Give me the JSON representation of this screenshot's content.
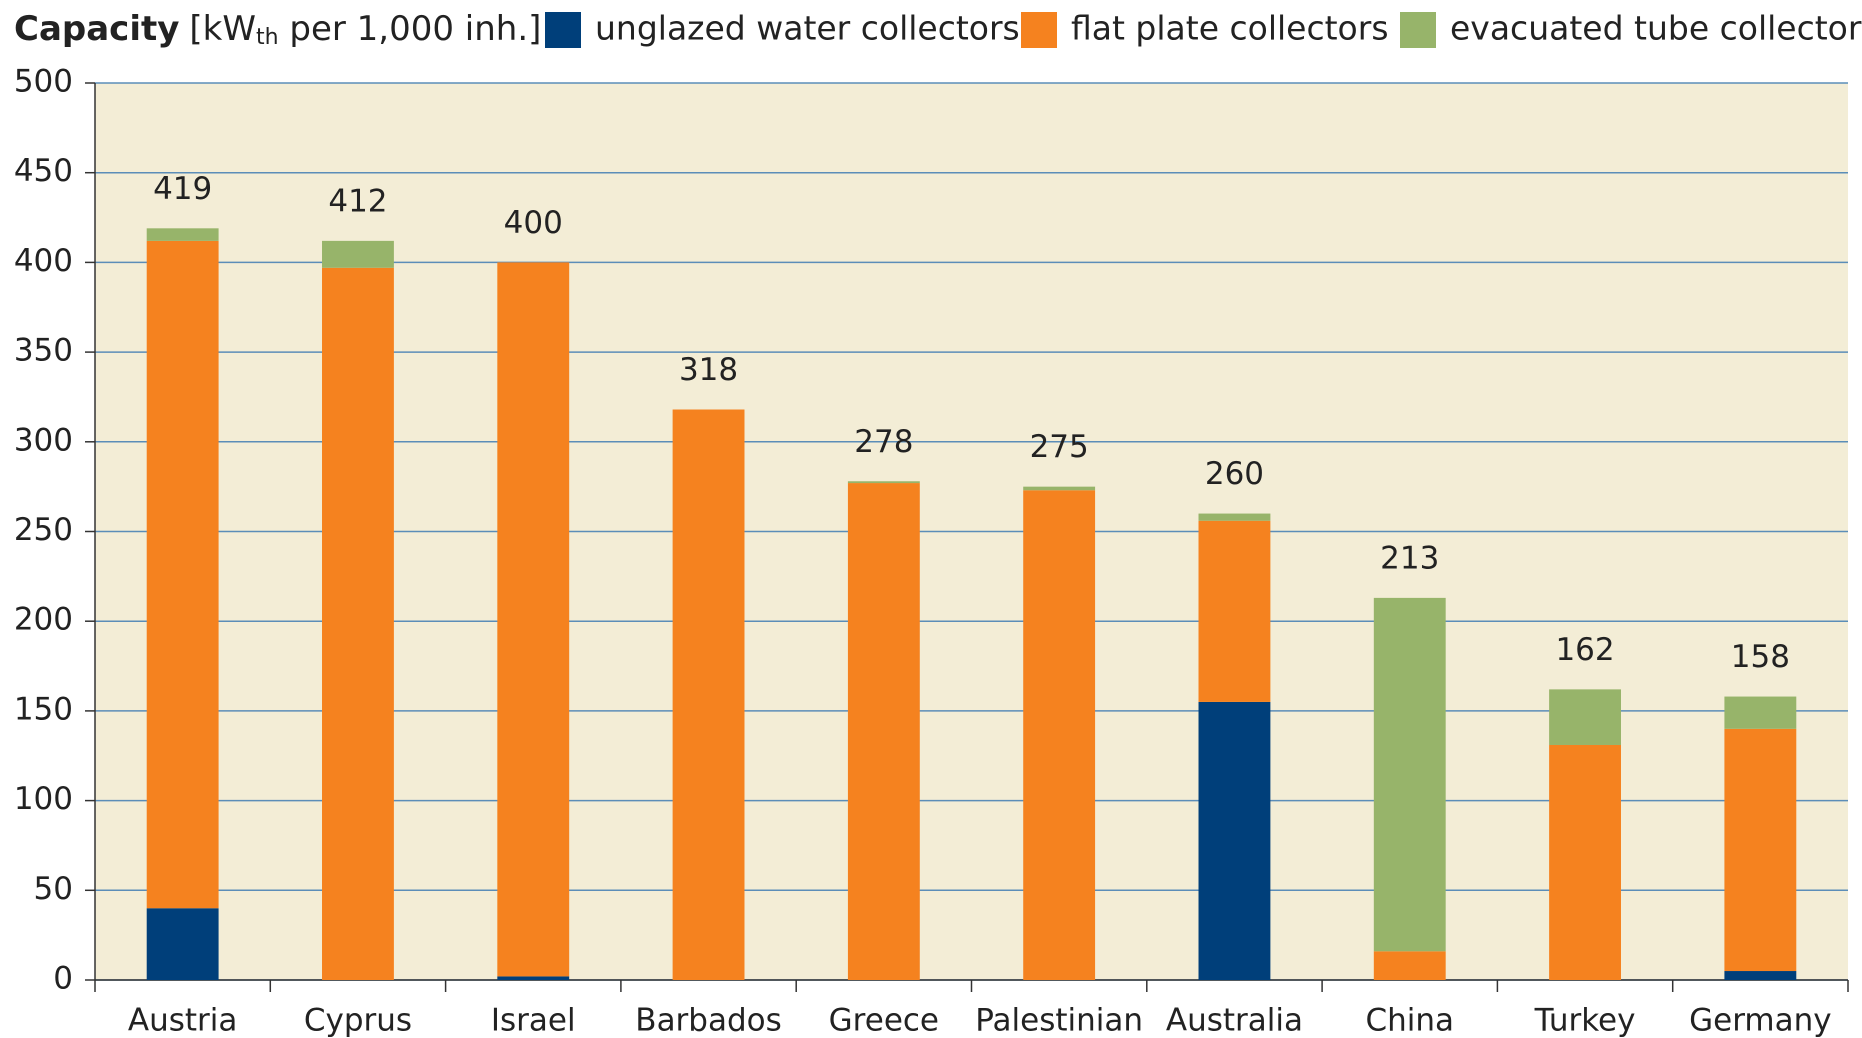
{
  "chart_data": {
    "type": "stacked_bar",
    "title": "Capacity",
    "unit_prefix": "[kW",
    "unit_subscript": "th",
    "unit_suffix": " per 1,000 inh.]",
    "categories": [
      "Austria",
      "Cyprus",
      "Israel",
      "Barbados",
      "Greece",
      "Palestinian",
      "Australia",
      "China",
      "Turkey",
      "Germany"
    ],
    "series": [
      {
        "name": "unglazed water collectors",
        "color": "#003f7a",
        "values": [
          40,
          0,
          2,
          0,
          0,
          0,
          155,
          0,
          0,
          5
        ]
      },
      {
        "name": "flat plate collectors",
        "color": "#f5821f",
        "values": [
          372,
          397,
          398,
          318,
          277,
          273,
          101,
          16,
          131,
          135
        ]
      },
      {
        "name": "evacuated tube collectors",
        "color": "#97b46a",
        "values": [
          7,
          15,
          0,
          0,
          1,
          2,
          4,
          197,
          31,
          18
        ]
      }
    ],
    "totals": [
      419,
      412,
      400,
      318,
      278,
      275,
      260,
      213,
      162,
      158
    ],
    "ylim": [
      0,
      500
    ],
    "yticks": [
      0,
      50,
      100,
      150,
      200,
      250,
      300,
      350,
      400,
      450,
      500
    ],
    "grid": true,
    "plot_background": "#f3edd6",
    "grid_color": "#5b8db8"
  }
}
